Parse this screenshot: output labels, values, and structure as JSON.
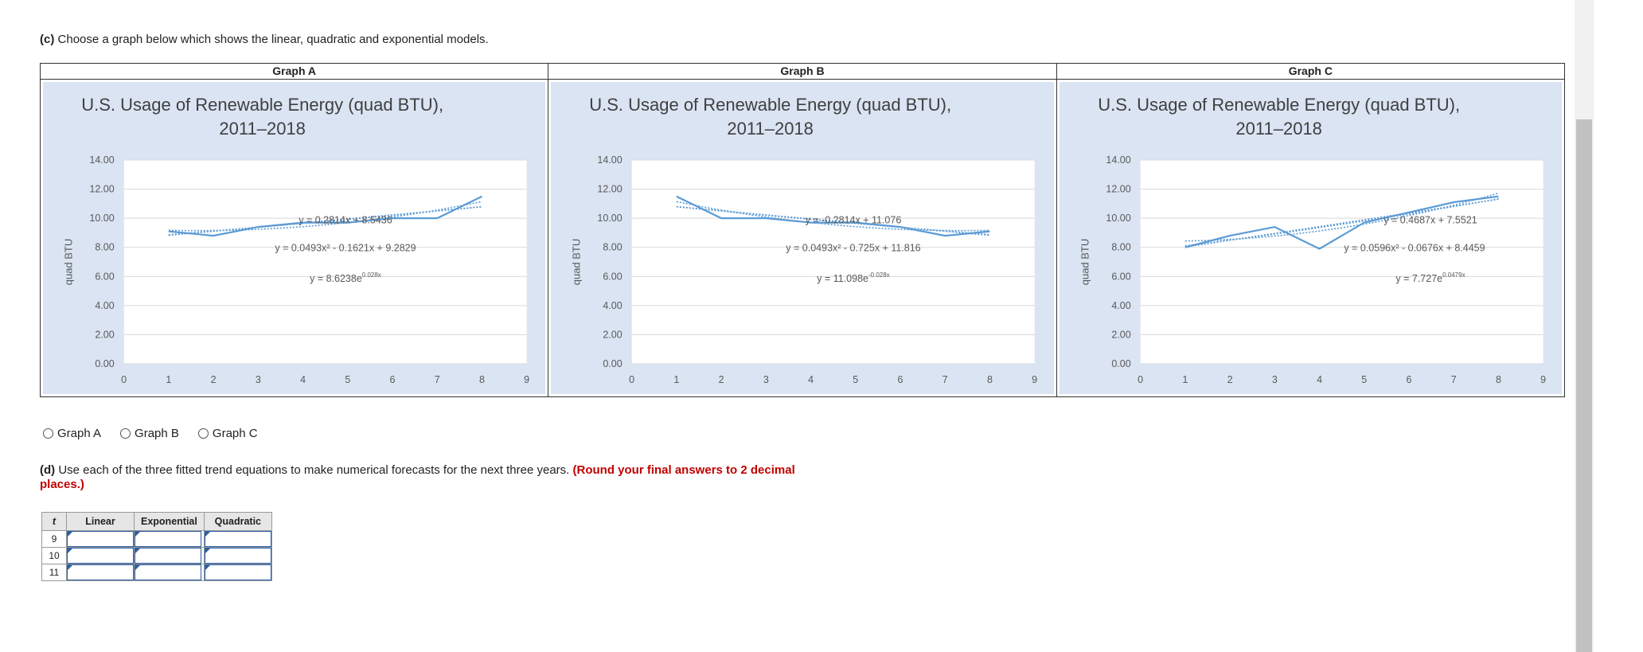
{
  "part_c": {
    "label": "(c)",
    "text": "Choose a graph below which shows the linear, quadratic and exponential models."
  },
  "graphs": [
    {
      "header": "Graph A",
      "title_line1": "U.S. Usage of Renewable Energy (quad BTU),",
      "title_line2": "2011–2018",
      "ylabel": "quad BTU",
      "eq_linear": "y = 0.2814x + 8.5436",
      "eq_quadratic": "y = 0.0493x² - 0.1621x + 9.2829",
      "eq_exp_base": "y = 8.6238e",
      "eq_exp_sup": "0.028x"
    },
    {
      "header": "Graph B",
      "title_line1": "U.S. Usage of Renewable Energy (quad BTU),",
      "title_line2": "2011–2018",
      "ylabel": "quad BTU",
      "eq_linear": "y = -0.2814x + 11.076",
      "eq_quadratic": "y = 0.0493x² - 0.725x + 11.816",
      "eq_exp_base": "y = 11.098e",
      "eq_exp_sup": "-0.028x"
    },
    {
      "header": "Graph C",
      "title_line1": "U.S. Usage of Renewable Energy (quad BTU),",
      "title_line2": "2011–2018",
      "ylabel": "quad BTU",
      "eq_linear": "y = 0.4687x + 7.5521",
      "eq_quadratic": "y = 0.0596x² - 0.0676x + 8.4459",
      "eq_exp_base": "y = 7.727e",
      "eq_exp_sup": "0.0479x"
    }
  ],
  "chart_data": [
    {
      "type": "line",
      "title": "U.S. Usage of Renewable Energy (quad BTU), 2011–2018",
      "ylabel": "quad BTU",
      "xlim": [
        0,
        9
      ],
      "ylim": [
        0,
        14
      ],
      "x_ticks": [
        0,
        1,
        2,
        3,
        4,
        5,
        6,
        7,
        8,
        9
      ],
      "y_ticks": [
        "0.00",
        "2.00",
        "4.00",
        "6.00",
        "8.00",
        "10.00",
        "12.00",
        "14.00"
      ],
      "series": [
        {
          "x": [
            1,
            2,
            3,
            4,
            5,
            6,
            7,
            8
          ],
          "values": [
            9.1,
            8.8,
            9.4,
            9.7,
            9.7,
            10.0,
            10.0,
            11.5
          ]
        }
      ],
      "trendlines": [
        {
          "kind": "linear",
          "a": 0.2814,
          "b": 8.5436
        },
        {
          "kind": "quadratic",
          "a": 0.0493,
          "b": -0.1621,
          "c": 9.2829
        },
        {
          "kind": "exponential",
          "a": 8.6238,
          "k": 0.028
        }
      ]
    },
    {
      "type": "line",
      "title": "U.S. Usage of Renewable Energy (quad BTU), 2011–2018",
      "ylabel": "quad BTU",
      "xlim": [
        0,
        9
      ],
      "ylim": [
        0,
        14
      ],
      "x_ticks": [
        0,
        1,
        2,
        3,
        4,
        5,
        6,
        7,
        8,
        9
      ],
      "y_ticks": [
        "0.00",
        "2.00",
        "4.00",
        "6.00",
        "8.00",
        "10.00",
        "12.00",
        "14.00"
      ],
      "series": [
        {
          "x": [
            1,
            2,
            3,
            4,
            5,
            6,
            7,
            8
          ],
          "values": [
            11.5,
            10.0,
            10.0,
            9.7,
            9.7,
            9.4,
            8.8,
            9.1
          ]
        }
      ],
      "trendlines": [
        {
          "kind": "linear",
          "a": -0.2814,
          "b": 11.076
        },
        {
          "kind": "quadratic",
          "a": 0.0493,
          "b": -0.725,
          "c": 11.816
        },
        {
          "kind": "exponential",
          "a": 11.098,
          "k": -0.028
        }
      ]
    },
    {
      "type": "line",
      "title": "U.S. Usage of Renewable Energy (quad BTU), 2011–2018",
      "ylabel": "quad BTU",
      "xlim": [
        0,
        9
      ],
      "ylim": [
        0,
        14
      ],
      "x_ticks": [
        0,
        1,
        2,
        3,
        4,
        5,
        6,
        7,
        8,
        9
      ],
      "y_ticks": [
        "0.00",
        "2.00",
        "4.00",
        "6.00",
        "8.00",
        "10.00",
        "12.00",
        "14.00"
      ],
      "series": [
        {
          "x": [
            1,
            2,
            3,
            4,
            5,
            6,
            7,
            8
          ],
          "values": [
            8.0,
            8.8,
            9.4,
            7.9,
            9.7,
            10.4,
            11.1,
            11.5
          ]
        }
      ],
      "trendlines": [
        {
          "kind": "linear",
          "a": 0.4687,
          "b": 7.5521
        },
        {
          "kind": "quadratic",
          "a": 0.0596,
          "b": -0.0676,
          "c": 8.4459
        },
        {
          "kind": "exponential",
          "a": 7.727,
          "k": 0.0479
        }
      ]
    }
  ],
  "options": [
    {
      "label": "Graph A"
    },
    {
      "label": "Graph B"
    },
    {
      "label": "Graph C"
    }
  ],
  "part_d": {
    "label": "(d)",
    "text": "Use each of the three fitted trend equations to make numerical forecasts for the next three years.",
    "note": "(Round your final answers to 2 decimal places.)"
  },
  "forecast_table": {
    "headers": [
      "t",
      "Linear",
      "Exponential",
      "Quadratic"
    ],
    "rows": [
      {
        "t": "9"
      },
      {
        "t": "10"
      },
      {
        "t": "11"
      }
    ]
  },
  "colors": {
    "chart_bg": "#dae4f3",
    "line": "#5b9bd5",
    "accent_red": "#c00000",
    "input_border": "#2e5fa3"
  }
}
